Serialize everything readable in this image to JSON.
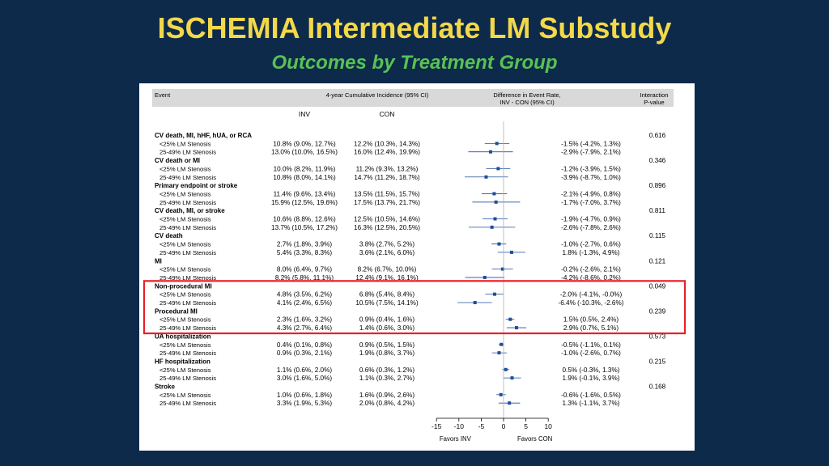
{
  "slide": {
    "title": "ISCHEMIA Intermediate LM Substudy",
    "subtitle": "Outcomes by Treatment Group"
  },
  "table": {
    "headers": {
      "event": "Event",
      "incidence": "4-year Cumulative Incidence (95% CI)",
      "difference": [
        "Difference in Event Rate,",
        "INV - CON (95% CI)"
      ],
      "interaction": [
        "Interaction",
        "P-value"
      ],
      "inv": "INV",
      "con": "CON"
    },
    "axis": {
      "ticks": [
        -15,
        -10,
        -5,
        0,
        5,
        10
      ],
      "xlim": [
        -15,
        10
      ],
      "left_label": "Favors INV",
      "right_label": "Favors CON"
    },
    "groups": [
      {
        "name": "CV death, MI, hHF, hUA, or RCA",
        "p": "0.616",
        "rows": [
          {
            "label": "<25% LM Stenosis",
            "inv": "10.8% (9.0%, 12.7%)",
            "con": "12.2% (10.3%, 14.3%)",
            "diff": "-1.5% (-4.2%, 1.3%)",
            "est": -1.5,
            "lo": -4.2,
            "hi": 1.3
          },
          {
            "label": "25-49% LM Stenosis",
            "inv": "13.0% (10.0%, 16.5%)",
            "con": "16.0% (12.4%, 19.9%)",
            "diff": "-2.9% (-7.9%, 2.1%)",
            "est": -2.9,
            "lo": -7.9,
            "hi": 2.1
          }
        ]
      },
      {
        "name": "CV death or MI",
        "p": "0.346",
        "rows": [
          {
            "label": "<25% LM Stenosis",
            "inv": "10.0% (8.2%, 11.9%)",
            "con": "11.2% (9.3%, 13.2%)",
            "diff": "-1.2% (-3.9%, 1.5%)",
            "est": -1.2,
            "lo": -3.9,
            "hi": 1.5
          },
          {
            "label": "25-49% LM Stenosis",
            "inv": "10.8% (8.0%, 14.1%)",
            "con": "14.7% (11.2%, 18.7%)",
            "diff": "-3.9% (-8.7%, 1.0%)",
            "est": -3.9,
            "lo": -8.7,
            "hi": 1.0
          }
        ]
      },
      {
        "name": "Primary endpoint or stroke",
        "p": "0.896",
        "rows": [
          {
            "label": "<25% LM Stenosis",
            "inv": "11.4% (9.6%, 13.4%)",
            "con": "13.5% (11.5%, 15.7%)",
            "diff": "-2.1% (-4.9%, 0.8%)",
            "est": -2.1,
            "lo": -4.9,
            "hi": 0.8
          },
          {
            "label": "25-49% LM Stenosis",
            "inv": "15.9% (12.5%, 19.6%)",
            "con": "17.5% (13.7%, 21.7%)",
            "diff": "-1.7% (-7.0%, 3.7%)",
            "est": -1.7,
            "lo": -7.0,
            "hi": 3.7
          }
        ]
      },
      {
        "name": "CV death, MI, or stroke",
        "p": "0.811",
        "rows": [
          {
            "label": "<25% LM Stenosis",
            "inv": "10.6% (8.8%, 12.6%)",
            "con": "12.5% (10.5%, 14.6%)",
            "diff": "-1.9% (-4.7%, 0.9%)",
            "est": -1.9,
            "lo": -4.7,
            "hi": 0.9
          },
          {
            "label": "25-49% LM Stenosis",
            "inv": "13.7% (10.5%, 17.2%)",
            "con": "16.3% (12.5%, 20.5%)",
            "diff": "-2.6% (-7.8%, 2.6%)",
            "est": -2.6,
            "lo": -7.8,
            "hi": 2.6
          }
        ]
      },
      {
        "name": "CV death",
        "p": "0.115",
        "rows": [
          {
            "label": "<25% LM Stenosis",
            "inv": "2.7% (1.8%, 3.9%)",
            "con": "3.8% (2.7%, 5.2%)",
            "diff": "-1.0% (-2.7%, 0.6%)",
            "est": -1.0,
            "lo": -2.7,
            "hi": 0.6
          },
          {
            "label": "25-49% LM Stenosis",
            "inv": "5.4% (3.3%, 8.3%)",
            "con": "3.6% (2.1%, 6.0%)",
            "diff": "1.8% (-1.3%, 4.9%)",
            "est": 1.8,
            "lo": -1.3,
            "hi": 4.9
          }
        ]
      },
      {
        "name": "MI",
        "p": "0.121",
        "rows": [
          {
            "label": "<25% LM Stenosis",
            "inv": "8.0% (6.4%, 9.7%)",
            "con": "8.2% (6.7%, 10.0%)",
            "diff": "-0.2% (-2.6%, 2.1%)",
            "est": -0.2,
            "lo": -2.6,
            "hi": 2.1
          },
          {
            "label": "25-49% LM Stenosis",
            "inv": "8.2% (5.8%, 11.1%)",
            "con": "12.4% (9.1%, 16.1%)",
            "diff": "-4.2% (-8.6%, 0.2%)",
            "est": -4.2,
            "lo": -8.6,
            "hi": 0.2
          }
        ]
      },
      {
        "name": "Non-procedural MI",
        "p": "0.049",
        "highlight": true,
        "rows": [
          {
            "label": "<25% LM Stenosis",
            "inv": "4.8% (3.5%, 6.2%)",
            "con": "6.8% (5.4%, 8.4%)",
            "diff": "-2.0% (-4.1%, -0.0%)",
            "est": -2.0,
            "lo": -4.1,
            "hi": 0.0
          },
          {
            "label": "25-49% LM Stenosis",
            "inv": "4.1% (2.4%, 6.5%)",
            "con": "10.5% (7.5%, 14.1%)",
            "diff": "-6.4% (-10.3%, -2.6%)",
            "est": -6.4,
            "lo": -10.3,
            "hi": -2.6
          }
        ]
      },
      {
        "name": "Procedural MI",
        "p": "0.239",
        "highlight": true,
        "rows": [
          {
            "label": "<25% LM Stenosis",
            "inv": "2.3% (1.6%, 3.2%)",
            "con": "0.9% (0.4%, 1.6%)",
            "diff": "1.5% (0.5%, 2.4%)",
            "est": 1.5,
            "lo": 0.5,
            "hi": 2.4
          },
          {
            "label": "25-49% LM Stenosis",
            "inv": "4.3% (2.7%, 6.4%)",
            "con": "1.4% (0.6%, 3.0%)",
            "diff": "2.9% (0.7%, 5.1%)",
            "est": 2.9,
            "lo": 0.7,
            "hi": 5.1
          }
        ]
      },
      {
        "name": "UA hospitalization",
        "p": "0.573",
        "rows": [
          {
            "label": "<25% LM Stenosis",
            "inv": "0.4% (0.1%, 0.8%)",
            "con": "0.9% (0.5%, 1.5%)",
            "diff": "-0.5% (-1.1%, 0.1%)",
            "est": -0.5,
            "lo": -1.1,
            "hi": 0.1
          },
          {
            "label": "25-49% LM Stenosis",
            "inv": "0.9% (0.3%, 2.1%)",
            "con": "1.9% (0.8%, 3.7%)",
            "diff": "-1.0% (-2.6%, 0.7%)",
            "est": -1.0,
            "lo": -2.6,
            "hi": 0.7
          }
        ]
      },
      {
        "name": "HF hospitalization",
        "p": "0.215",
        "rows": [
          {
            "label": "<25% LM Stenosis",
            "inv": "1.1% (0.6%, 2.0%)",
            "con": "0.6% (0.3%, 1.2%)",
            "diff": "0.5% (-0.3%, 1.3%)",
            "est": 0.5,
            "lo": -0.3,
            "hi": 1.3
          },
          {
            "label": "25-49% LM Stenosis",
            "inv": "3.0% (1.6%, 5.0%)",
            "con": "1.1% (0.3%, 2.7%)",
            "diff": "1.9% (-0.1%, 3.9%)",
            "est": 1.9,
            "lo": -0.1,
            "hi": 3.9
          }
        ]
      },
      {
        "name": "Stroke",
        "p": "0.168",
        "rows": [
          {
            "label": "<25% LM Stenosis",
            "inv": "1.0% (0.6%, 1.8%)",
            "con": "1.6% (0.9%, 2.6%)",
            "diff": "-0.6% (-1.6%, 0.5%)",
            "est": -0.6,
            "lo": -1.6,
            "hi": 0.5
          },
          {
            "label": "25-49% LM Stenosis",
            "inv": "3.3% (1.9%, 5.3%)",
            "con": "2.0% (0.8%, 4.2%)",
            "diff": "1.3% (-1.1%, 3.7%)",
            "est": 1.3,
            "lo": -1.1,
            "hi": 3.7
          }
        ]
      }
    ]
  },
  "colors": {
    "background": "#0d2a4a",
    "title": "#f3d84a",
    "subtitle": "#58c255",
    "marker": "#1f4e9c",
    "highlight_box": "#e8202a",
    "header_band": "#d9d9d9"
  },
  "chart_data": {
    "type": "forest",
    "xlim": [
      -15,
      10
    ],
    "x_ticks": [
      -15,
      -10,
      -5,
      0,
      5,
      10
    ],
    "x_left_label": "Favors INV",
    "x_right_label": "Favors CON",
    "reference_line": 0
  }
}
